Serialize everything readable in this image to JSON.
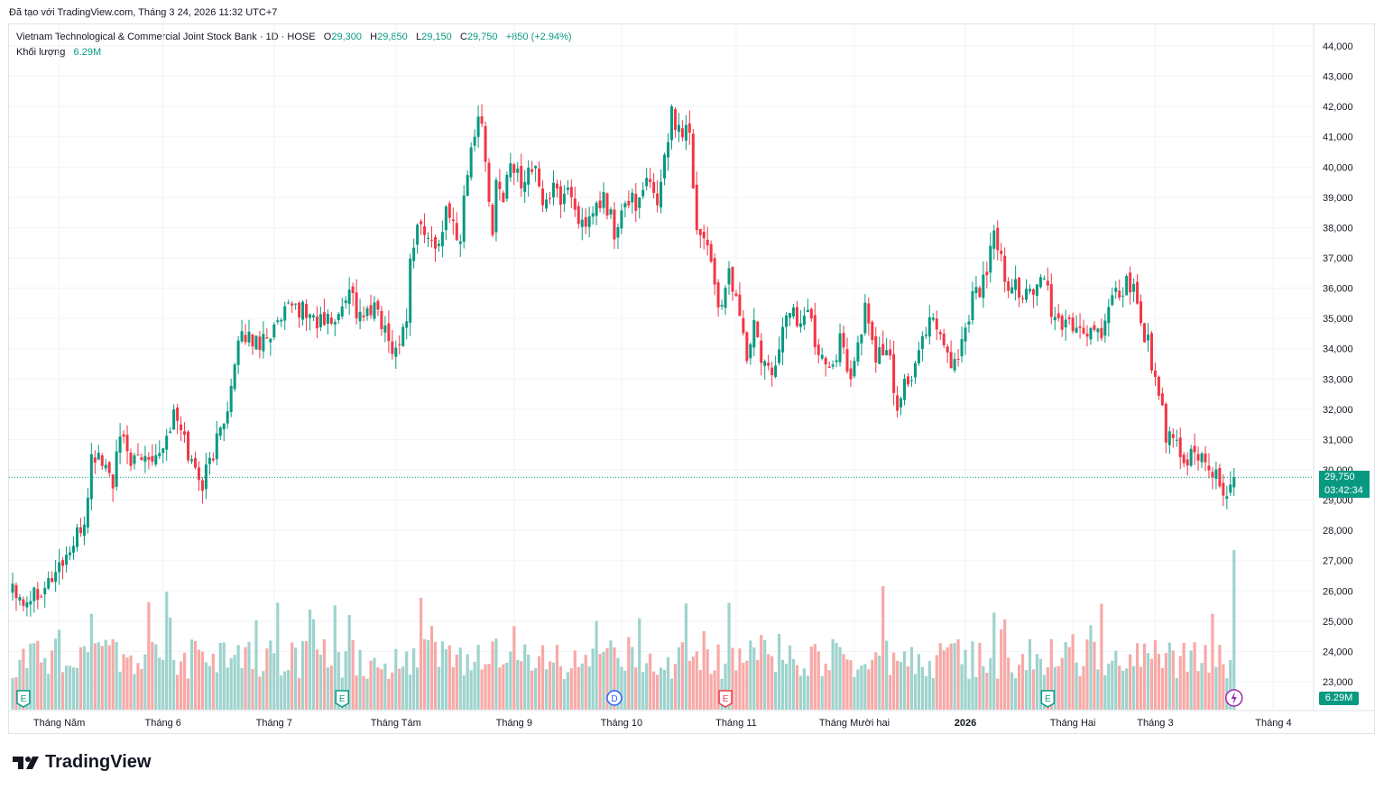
{
  "caption": "Đã tạo với TradingView.com, Tháng 3 24, 2026 11:32 UTC+7",
  "legend": {
    "symbol": "Vietnam Technological & Commercial Joint Stock Bank · 1D · HOSE",
    "open_label": "O",
    "open": "29,300",
    "high_label": "H",
    "high": "29,850",
    "low_label": "L",
    "low": "29,150",
    "close_label": "C",
    "close": "29,750",
    "change": "+850 (+2.94%)",
    "volume_label": "Khối lượng",
    "volume": "6.29M"
  },
  "price_tag": {
    "price": "29,750",
    "countdown": "03:42:34"
  },
  "volume_tag": "6.29M",
  "brand": "TradingView",
  "colors": {
    "up": "#089981",
    "down": "#F23645",
    "up_vol": "#9ED3CD",
    "down_vol": "#F7A9A7"
  },
  "events": [
    {
      "label": "E",
      "index": 3
    },
    {
      "label": "E",
      "index": 92
    },
    {
      "label": "D",
      "index": 168
    },
    {
      "label": "E",
      "index": 199
    },
    {
      "label": "E",
      "index": 289
    }
  ],
  "chart_data": {
    "type": "candlestick",
    "yaxis_side": "right",
    "ylim": [
      22000,
      44500
    ],
    "yticks": [
      23000,
      24000,
      25000,
      26000,
      27000,
      28000,
      29000,
      30000,
      31000,
      32000,
      33000,
      34000,
      35000,
      36000,
      37000,
      38000,
      39000,
      40000,
      41000,
      42000,
      43000,
      44000
    ],
    "ytick_labels": [
      "23,000",
      "24,000",
      "25,000",
      "26,000",
      "27,000",
      "28,000",
      "29,000",
      "30,000",
      "31,000",
      "32,000",
      "33,000",
      "34,000",
      "35,000",
      "36,000",
      "37,000",
      "38,000",
      "39,000",
      "40,000",
      "41,000",
      "42,000",
      "43,000",
      "44,000"
    ],
    "xtick_labels": [
      {
        "label": "Tháng Năm",
        "index": 13
      },
      {
        "label": "Tháng 6",
        "index": 42
      },
      {
        "label": "Tháng 7",
        "index": 73
      },
      {
        "label": "Tháng Tám",
        "index": 107
      },
      {
        "label": "Tháng 9",
        "index": 140
      },
      {
        "label": "Tháng 10",
        "index": 170
      },
      {
        "label": "Tháng 11",
        "index": 202
      },
      {
        "label": "Tháng Mười hai",
        "index": 235
      },
      {
        "label": "2026",
        "index": 266
      },
      {
        "label": "Tháng Hai",
        "index": 296
      },
      {
        "label": "Tháng 3",
        "index": 319
      },
      {
        "label": "Tháng 4",
        "index": 352
      }
    ],
    "last_price": 29750,
    "candles_count": 342,
    "anchors": [
      [
        0,
        26300
      ],
      [
        3,
        25700
      ],
      [
        10,
        26300
      ],
      [
        14,
        27000
      ],
      [
        17,
        27500
      ],
      [
        20,
        28300
      ],
      [
        21,
        29300
      ],
      [
        22,
        30300
      ],
      [
        24,
        30500
      ],
      [
        28,
        29600
      ],
      [
        30,
        31000
      ],
      [
        34,
        30200
      ],
      [
        38,
        30500
      ],
      [
        42,
        30800
      ],
      [
        45,
        31800
      ],
      [
        48,
        31000
      ],
      [
        50,
        30200
      ],
      [
        53,
        29600
      ],
      [
        56,
        30600
      ],
      [
        58,
        31300
      ],
      [
        61,
        32700
      ],
      [
        63,
        34000
      ],
      [
        65,
        34500
      ],
      [
        68,
        34200
      ],
      [
        71,
        34500
      ],
      [
        74,
        34700
      ],
      [
        76,
        35100
      ],
      [
        79,
        35400
      ],
      [
        82,
        35200
      ],
      [
        85,
        34900
      ],
      [
        88,
        34900
      ],
      [
        91,
        35000
      ],
      [
        94,
        36200
      ],
      [
        96,
        35200
      ],
      [
        99,
        35100
      ],
      [
        102,
        35300
      ],
      [
        105,
        34200
      ],
      [
        108,
        34100
      ],
      [
        110,
        35200
      ],
      [
        111,
        36800
      ],
      [
        113,
        38200
      ],
      [
        116,
        37600
      ],
      [
        118,
        37300
      ],
      [
        121,
        38400
      ],
      [
        125,
        37700
      ],
      [
        126,
        39000
      ],
      [
        128,
        40600
      ],
      [
        130,
        41800
      ],
      [
        132,
        40500
      ],
      [
        134,
        37600
      ],
      [
        135,
        39600
      ],
      [
        137,
        38900
      ],
      [
        139,
        40000
      ],
      [
        142,
        39600
      ],
      [
        145,
        40100
      ],
      [
        148,
        38900
      ],
      [
        151,
        39200
      ],
      [
        153,
        39000
      ],
      [
        155,
        39300
      ],
      [
        158,
        38400
      ],
      [
        160,
        37700
      ],
      [
        162,
        38500
      ],
      [
        165,
        38900
      ],
      [
        167,
        38400
      ],
      [
        168,
        37600
      ],
      [
        170,
        38400
      ],
      [
        173,
        39100
      ],
      [
        175,
        38700
      ],
      [
        177,
        39500
      ],
      [
        180,
        38900
      ],
      [
        183,
        41100
      ],
      [
        184,
        41700
      ],
      [
        186,
        41300
      ],
      [
        189,
        41300
      ],
      [
        191,
        37900
      ],
      [
        194,
        37600
      ],
      [
        196,
        36100
      ],
      [
        198,
        35100
      ],
      [
        200,
        36500
      ],
      [
        203,
        35200
      ],
      [
        205,
        33600
      ],
      [
        207,
        34800
      ],
      [
        209,
        33600
      ],
      [
        212,
        33000
      ],
      [
        214,
        34200
      ],
      [
        217,
        35400
      ],
      [
        219,
        34900
      ],
      [
        222,
        35200
      ],
      [
        224,
        34300
      ],
      [
        227,
        33700
      ],
      [
        229,
        33700
      ],
      [
        231,
        34200
      ],
      [
        234,
        33200
      ],
      [
        236,
        34000
      ],
      [
        238,
        35300
      ],
      [
        241,
        33800
      ],
      [
        243,
        33900
      ],
      [
        245,
        33500
      ],
      [
        247,
        32000
      ],
      [
        249,
        33000
      ],
      [
        251,
        33000
      ],
      [
        253,
        33800
      ],
      [
        256,
        35200
      ],
      [
        259,
        34600
      ],
      [
        262,
        33500
      ],
      [
        264,
        33800
      ],
      [
        266,
        34700
      ],
      [
        268,
        35800
      ],
      [
        270,
        36000
      ],
      [
        272,
        36400
      ],
      [
        274,
        37800
      ],
      [
        276,
        36800
      ],
      [
        278,
        35700
      ],
      [
        280,
        36200
      ],
      [
        282,
        35800
      ],
      [
        284,
        35900
      ],
      [
        286,
        35800
      ],
      [
        288,
        36400
      ],
      [
        290,
        35200
      ],
      [
        292,
        34700
      ],
      [
        295,
        35000
      ],
      [
        298,
        34400
      ],
      [
        300,
        34600
      ],
      [
        303,
        34500
      ],
      [
        305,
        34600
      ],
      [
        306,
        35300
      ],
      [
        308,
        35700
      ],
      [
        310,
        36000
      ],
      [
        313,
        36200
      ],
      [
        315,
        34800
      ],
      [
        317,
        34200
      ],
      [
        319,
        33000
      ],
      [
        321,
        31800
      ],
      [
        322,
        31000
      ],
      [
        325,
        30800
      ],
      [
        327,
        30000
      ],
      [
        329,
        30600
      ],
      [
        332,
        30400
      ],
      [
        334,
        30200
      ],
      [
        336,
        29800
      ],
      [
        338,
        29200
      ],
      [
        341,
        29750
      ]
    ],
    "volume_ylim": [
      0,
      7000000
    ],
    "volume_last": 6290000
  }
}
